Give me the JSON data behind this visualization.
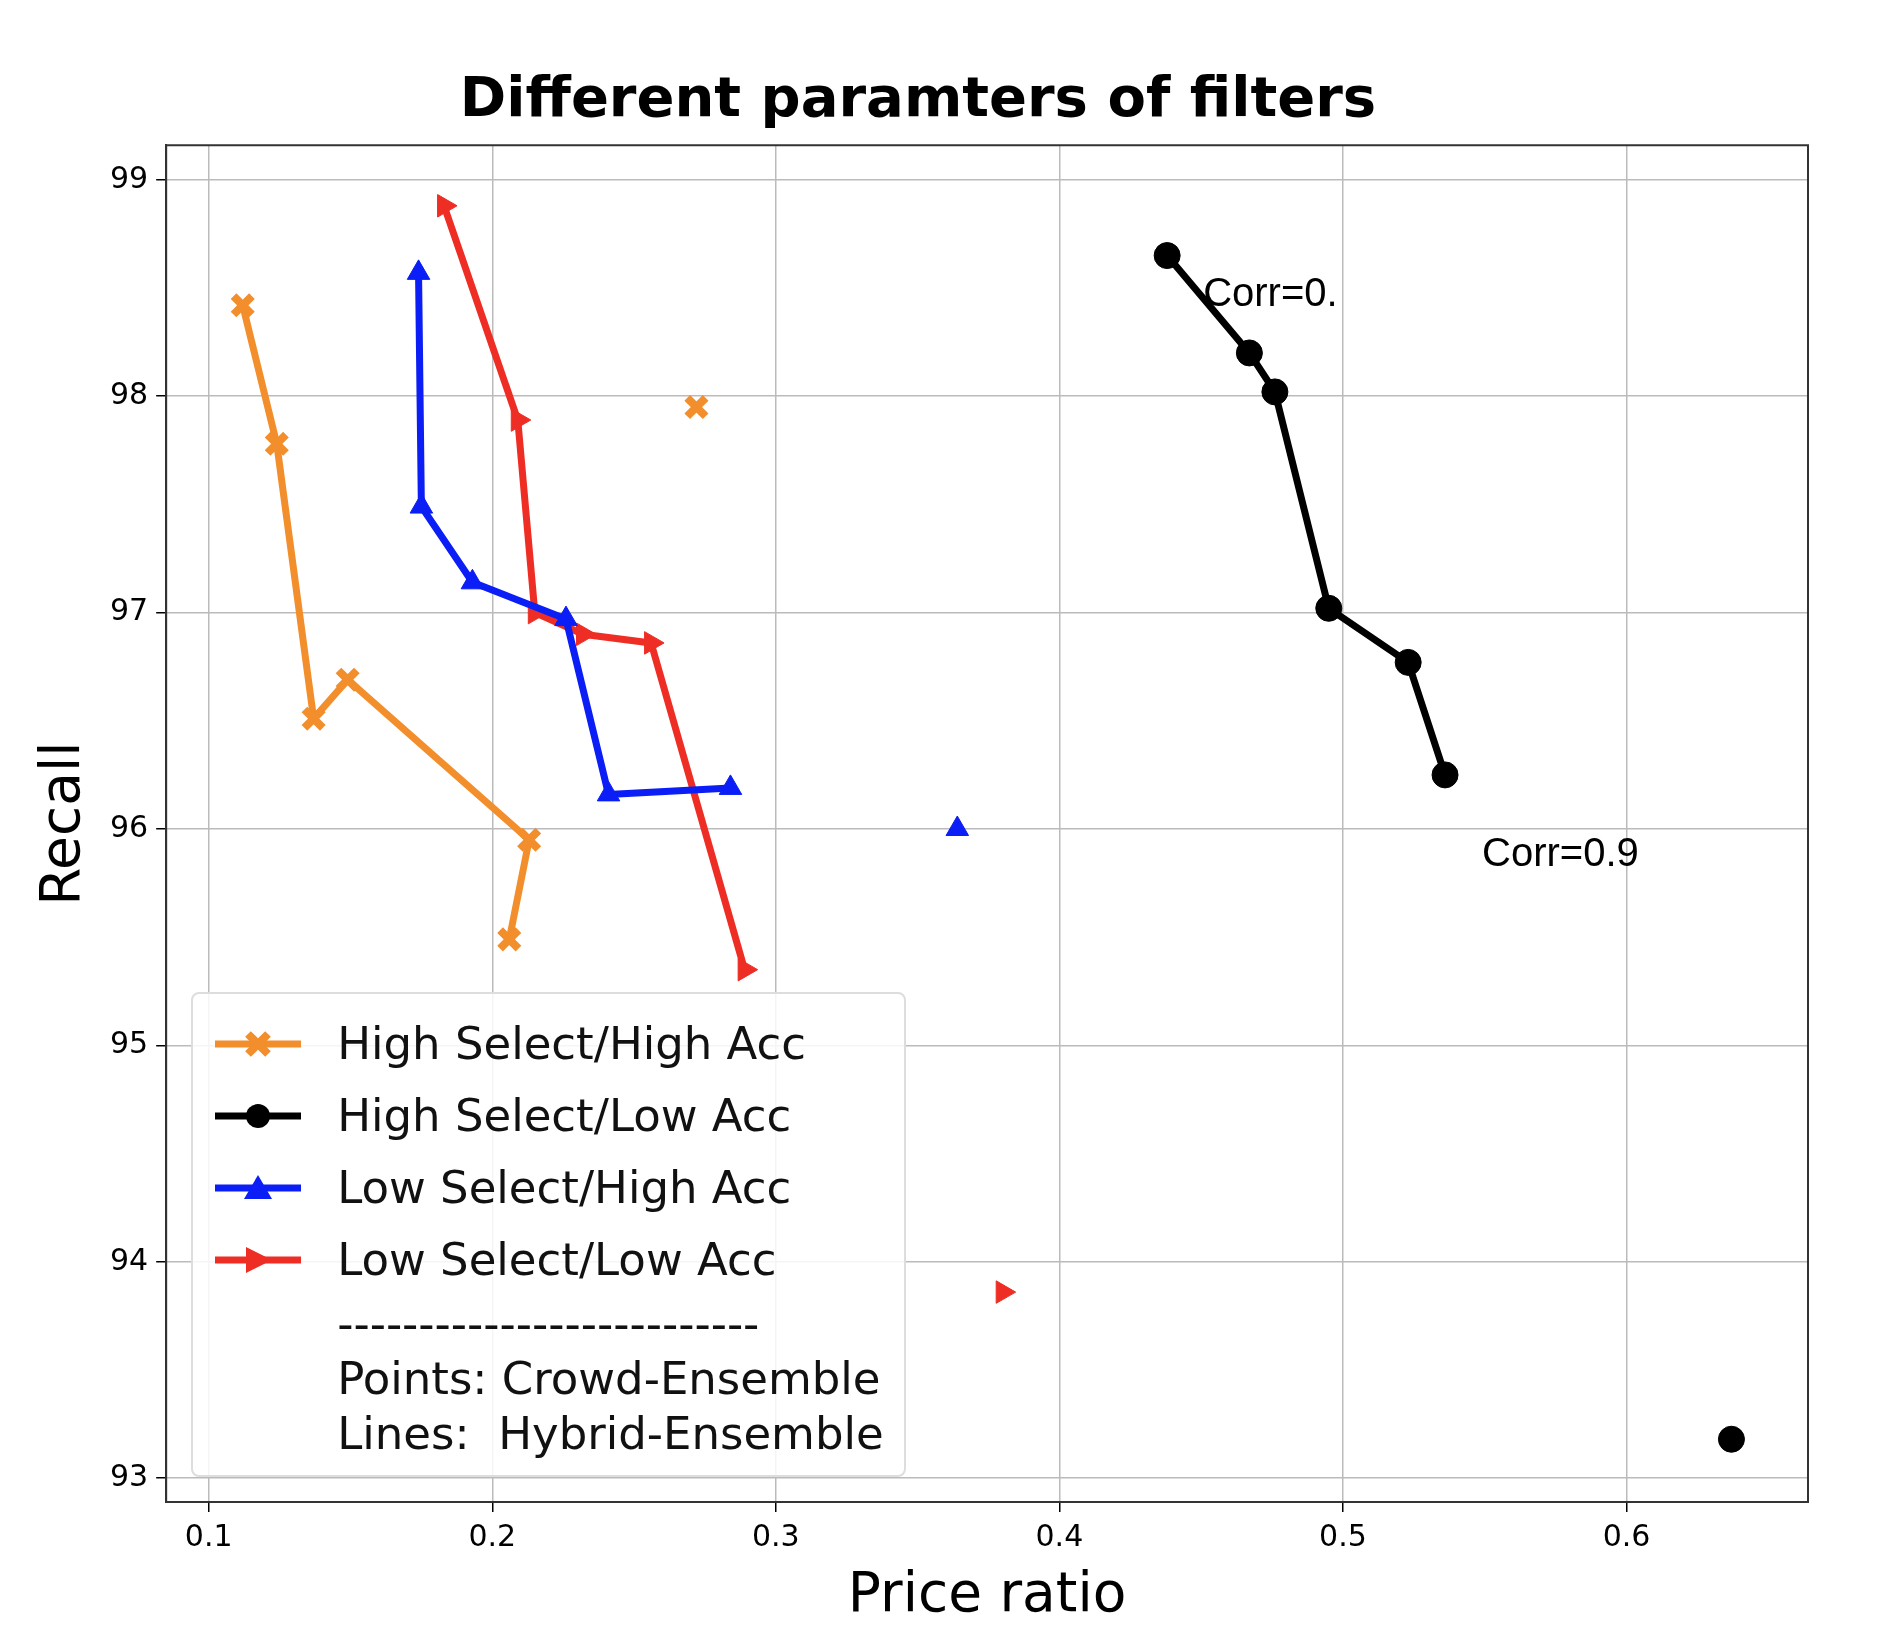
{
  "chart_data": {
    "type": "line",
    "title": "Different paramters of filters",
    "xlabel": "Price ratio",
    "ylabel": "Recall",
    "xlim": [
      0.085,
      0.664
    ],
    "xticks": [
      0.1,
      0.2,
      0.3,
      0.4,
      0.5,
      0.6
    ],
    "ylim": [
      92.89,
      99.16
    ],
    "yticks": [
      93,
      94,
      95,
      96,
      97,
      98,
      99
    ],
    "grid": true,
    "legend": "bottom left",
    "line_style": "solid",
    "series": [
      {
        "name": "High Select/High Acc",
        "color": "#f28e2b",
        "marker": "cross",
        "x": [
          0.112,
          0.124,
          0.137,
          0.149,
          0.213,
          0.206
        ],
        "values": [
          98.42,
          97.78,
          96.51,
          96.69,
          95.95,
          95.49
        ]
      },
      {
        "name": "High Select/Low Acc",
        "color": "#000000",
        "marker": "circle",
        "x": [
          0.438,
          0.467,
          0.476,
          0.495,
          0.523,
          0.536
        ],
        "values": [
          98.65,
          98.2,
          98.02,
          97.02,
          96.77,
          96.25
        ]
      },
      {
        "name": "Low Select/High Acc",
        "color": "#0a1ef5",
        "marker": "triangle",
        "x": [
          0.174,
          0.175,
          0.193,
          0.226,
          0.241,
          0.284
        ],
        "values": [
          98.57,
          97.49,
          97.14,
          96.97,
          96.16,
          96.19
        ]
      },
      {
        "name": "Low Select/Low Acc",
        "color": "#ee2e24",
        "marker": "triangle-right",
        "x": [
          0.183,
          0.209,
          0.215,
          0.232,
          0.256,
          0.289
        ],
        "values": [
          98.88,
          97.89,
          97.0,
          96.9,
          96.86,
          95.35
        ]
      },
      {
        "type": "scatter",
        "color": "#f28e2b",
        "marker": "cross",
        "x": [
          0.272
        ],
        "values": [
          97.95
        ]
      },
      {
        "type": "scatter",
        "color": "#000000",
        "marker": "circle",
        "x": [
          0.637
        ],
        "values": [
          93.18
        ]
      },
      {
        "type": "scatter",
        "color": "#0a1ef5",
        "marker": "triangle",
        "x": [
          0.364
        ],
        "values": [
          96.0
        ]
      },
      {
        "type": "scatter",
        "color": "#ee2e24",
        "marker": "triangle-right",
        "x": [
          0.38
        ],
        "values": [
          93.86
        ]
      }
    ],
    "annotations": [
      {
        "text": "Corr=0.",
        "x": 0.438,
        "y": 98.65
      },
      {
        "text": "Corr=0.9",
        "x": 0.536,
        "y": 96.25
      },
      "--------------------------",
      "Points: Crowd-Ensemble",
      "Lines:  Hybrid-Ensemble"
    ]
  }
}
